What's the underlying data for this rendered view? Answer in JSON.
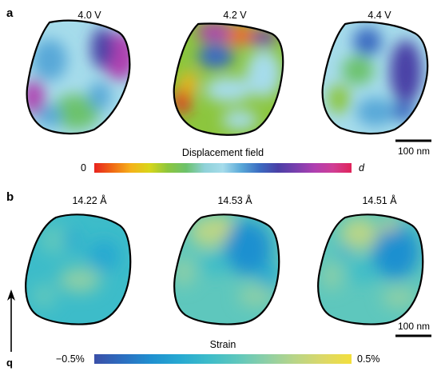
{
  "panel_a": {
    "letter": "a",
    "voltage_labels": [
      "4.0 V",
      "4.2 V",
      "4.4 V"
    ],
    "colorbar": {
      "title": "Displacement field",
      "min_label": "0",
      "max_label": "d",
      "colors": [
        "#e8231e",
        "#f06a14",
        "#f5b21a",
        "#d8d61a",
        "#8cc63e",
        "#6cc26c",
        "#8fd1d8",
        "#a6dceb",
        "#59a8d8",
        "#3b6bc1",
        "#4a3fa6",
        "#7a3fae",
        "#b03fb0",
        "#d03e95",
        "#e0235a"
      ]
    },
    "scale_bar_label": "100 nm"
  },
  "panel_b": {
    "letter": "b",
    "lattice_labels": [
      "14.22 Å",
      "14.53 Å",
      "14.51 Å"
    ],
    "colorbar": {
      "title": "Strain",
      "min_label": "−0.5%",
      "max_label": "0.5%",
      "colors": [
        "#3a4fa8",
        "#2c6ec0",
        "#1f90d0",
        "#27a9d1",
        "#3dbcc9",
        "#5ec7bd",
        "#8ccfa7",
        "#b8d588",
        "#dcd868",
        "#f3df3c"
      ]
    },
    "scale_bar_label": "100 nm",
    "vector_label": "q"
  }
}
